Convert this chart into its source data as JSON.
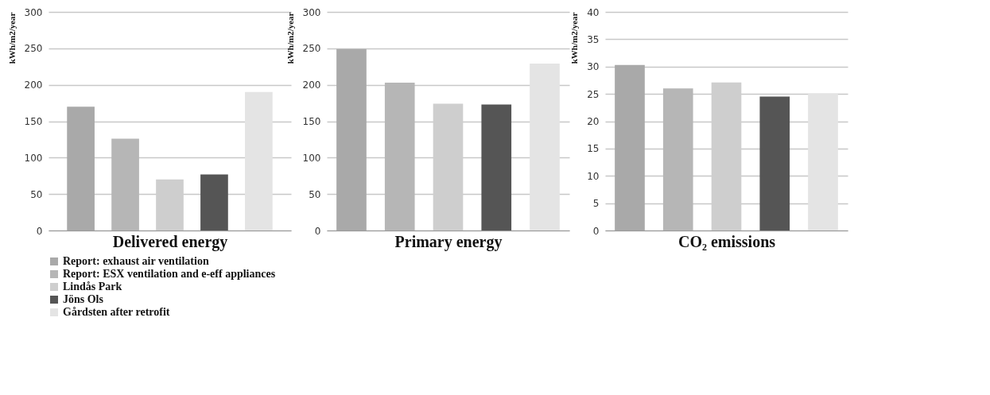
{
  "chart_data": [
    {
      "type": "bar",
      "xlabel": "Delivered energy",
      "ylabel": "kWh/m2/year",
      "categories": [
        null
      ],
      "series": [
        {
          "name": "Report: exhaust air ventilation",
          "color": "#a9a9a9",
          "values": [
            170
          ]
        },
        {
          "name": "Report: ESX ventilation and e-eff appliances",
          "color": "#b6b6b6",
          "values": [
            126
          ]
        },
        {
          "name": "Lindås Park",
          "color": "#cecece",
          "values": [
            70
          ]
        },
        {
          "name": "Jöns Ols",
          "color": "#555555",
          "values": [
            77
          ]
        },
        {
          "name": "Gårdsten after retrofit",
          "color": "#e4e4e4",
          "values": [
            190
          ]
        }
      ],
      "ylim": [
        0,
        300
      ],
      "yticks": [
        0,
        50,
        100,
        150,
        200,
        250,
        300
      ],
      "grid": "y",
      "legend": "bottom",
      "tick_labels": "y"
    },
    {
      "type": "bar",
      "xlabel": "Primary energy",
      "ylabel": "kWh/m2/year",
      "categories": [
        null,
        null,
        null,
        null,
        null
      ],
      "values": [
        249,
        203,
        174,
        173,
        229
      ],
      "colors": [
        "#a9a9a9",
        "#b6b6b6",
        "#cecece",
        "#555555",
        "#e4e4e4"
      ],
      "ylim": [
        0,
        300
      ],
      "yticks": [
        0,
        50,
        100,
        150,
        200,
        250,
        300
      ],
      "grid": "y",
      "tick_labels": "y"
    },
    {
      "type": "bar",
      "xlabel": "CO₂ emissions",
      "ylabel": "kWh/m2/year",
      "categories": [
        null,
        null,
        null,
        null,
        null
      ],
      "values": [
        30.3,
        26.0,
        27.1,
        24.5,
        25.1
      ],
      "colors": [
        "#a9a9a9",
        "#b6b6b6",
        "#cecece",
        "#555555",
        "#e4e4e4"
      ],
      "ylim": [
        0,
        40
      ],
      "yticks": [
        0,
        5,
        10,
        15,
        20,
        25,
        30,
        35,
        40
      ],
      "grid": "y",
      "tick_labels": "y"
    }
  ]
}
